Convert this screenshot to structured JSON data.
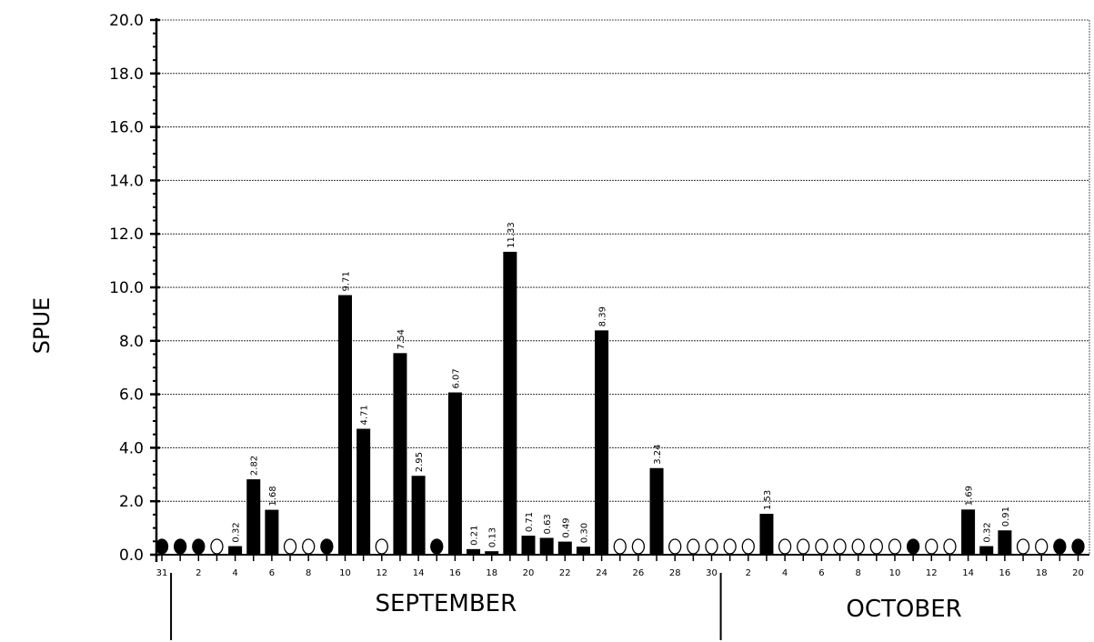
{
  "chart_data": {
    "type": "bar",
    "ylabel": "SPUE",
    "ylim": [
      0,
      20
    ],
    "yticks": [
      "0.0",
      "2.0",
      "4.0",
      "6.0",
      "8.0",
      "10.0",
      "12.0",
      "14.0",
      "16.0",
      "18.0",
      "20.0"
    ],
    "grid": true,
    "days": [
      {
        "date": "Aug 31",
        "marker": "filled"
      },
      {
        "date": "Sep 1",
        "marker": "filled"
      },
      {
        "date": "Sep 2",
        "marker": "filled"
      },
      {
        "date": "Sep 3",
        "marker": "open"
      },
      {
        "date": "Sep 4",
        "value": 0.32,
        "label": "0.32"
      },
      {
        "date": "Sep 5",
        "value": 2.82,
        "label": "2.82"
      },
      {
        "date": "Sep 6",
        "value": 1.68,
        "label": "1.68"
      },
      {
        "date": "Sep 7",
        "marker": "open"
      },
      {
        "date": "Sep 8",
        "marker": "open"
      },
      {
        "date": "Sep 9",
        "marker": "filled"
      },
      {
        "date": "Sep 10",
        "value": 9.71,
        "label": "9.71"
      },
      {
        "date": "Sep 11",
        "value": 4.71,
        "label": "4.71"
      },
      {
        "date": "Sep 12",
        "marker": "open"
      },
      {
        "date": "Sep 13",
        "value": 7.54,
        "label": "7.54"
      },
      {
        "date": "Sep 14",
        "value": 2.95,
        "label": "2.95"
      },
      {
        "date": "Sep 15",
        "marker": "filled"
      },
      {
        "date": "Sep 16",
        "value": 6.07,
        "label": "6.07"
      },
      {
        "date": "Sep 17",
        "value": 0.21,
        "label": "0.21"
      },
      {
        "date": "Sep 18",
        "value": 0.13,
        "label": "0.13"
      },
      {
        "date": "Sep 19",
        "value": 11.33,
        "label": "11.33"
      },
      {
        "date": "Sep 20",
        "value": 0.71,
        "label": "0.71"
      },
      {
        "date": "Sep 21",
        "value": 0.63,
        "label": "0.63"
      },
      {
        "date": "Sep 22",
        "value": 0.49,
        "label": "0.49"
      },
      {
        "date": "Sep 23",
        "value": 0.3,
        "label": "0.30"
      },
      {
        "date": "Sep 24",
        "value": 8.39,
        "label": "8.39"
      },
      {
        "date": "Sep 25",
        "marker": "open"
      },
      {
        "date": "Sep 26",
        "marker": "open"
      },
      {
        "date": "Sep 27",
        "value": 3.24,
        "label": "3.24"
      },
      {
        "date": "Sep 28",
        "marker": "open"
      },
      {
        "date": "Sep 29",
        "marker": "open"
      },
      {
        "date": "Sep 30",
        "marker": "open"
      },
      {
        "date": "Oct 1",
        "marker": "open"
      },
      {
        "date": "Oct 2",
        "marker": "open"
      },
      {
        "date": "Oct 3",
        "value": 1.53,
        "label": "1.53"
      },
      {
        "date": "Oct 4",
        "marker": "open"
      },
      {
        "date": "Oct 5",
        "marker": "open"
      },
      {
        "date": "Oct 6",
        "marker": "open"
      },
      {
        "date": "Oct 7",
        "marker": "open"
      },
      {
        "date": "Oct 8",
        "marker": "open"
      },
      {
        "date": "Oct 9",
        "marker": "open"
      },
      {
        "date": "Oct 10",
        "marker": "open"
      },
      {
        "date": "Oct 11",
        "marker": "filled"
      },
      {
        "date": "Oct 12",
        "marker": "open"
      },
      {
        "date": "Oct 13",
        "marker": "open"
      },
      {
        "date": "Oct 14",
        "value": 1.69,
        "label": "1.69"
      },
      {
        "date": "Oct 15",
        "value": 0.32,
        "label": "0.32"
      },
      {
        "date": "Oct 16",
        "value": 0.91,
        "label": "0.91"
      },
      {
        "date": "Oct 17",
        "marker": "open"
      },
      {
        "date": "Oct 18",
        "marker": "open"
      },
      {
        "date": "Oct 19",
        "marker": "filled"
      },
      {
        "date": "Oct 20",
        "marker": "filled"
      }
    ],
    "xtick_labels": [
      {
        "date": "Aug 31",
        "label": "31"
      },
      {
        "date": "Sep 2",
        "label": "2"
      },
      {
        "date": "Sep 4",
        "label": "4"
      },
      {
        "date": "Sep 6",
        "label": "6"
      },
      {
        "date": "Sep 8",
        "label": "8"
      },
      {
        "date": "Sep 10",
        "label": "10"
      },
      {
        "date": "Sep 12",
        "label": "12"
      },
      {
        "date": "Sep 14",
        "label": "14"
      },
      {
        "date": "Sep 16",
        "label": "16"
      },
      {
        "date": "Sep 18",
        "label": "18"
      },
      {
        "date": "Sep 20",
        "label": "20"
      },
      {
        "date": "Sep 22",
        "label": "22"
      },
      {
        "date": "Sep 24",
        "label": "24"
      },
      {
        "date": "Sep 26",
        "label": "26"
      },
      {
        "date": "Sep 28",
        "label": "28"
      },
      {
        "date": "Sep 30",
        "label": "30"
      },
      {
        "date": "Oct 2",
        "label": "2"
      },
      {
        "date": "Oct 4",
        "label": "4"
      },
      {
        "date": "Oct 6",
        "label": "6"
      },
      {
        "date": "Oct 8",
        "label": "8"
      },
      {
        "date": "Oct 10",
        "label": "10"
      },
      {
        "date": "Oct 12",
        "label": "12"
      },
      {
        "date": "Oct 14",
        "label": "14"
      },
      {
        "date": "Oct 16",
        "label": "16"
      },
      {
        "date": "Oct 18",
        "label": "18"
      },
      {
        "date": "Oct 20",
        "label": "20"
      }
    ],
    "months": [
      {
        "label": "SEPTEMBER",
        "start": "Sep 1",
        "end": "Sep 30"
      },
      {
        "label": "OCTOBER",
        "start": "Oct 1",
        "end": "Oct 20"
      }
    ]
  }
}
